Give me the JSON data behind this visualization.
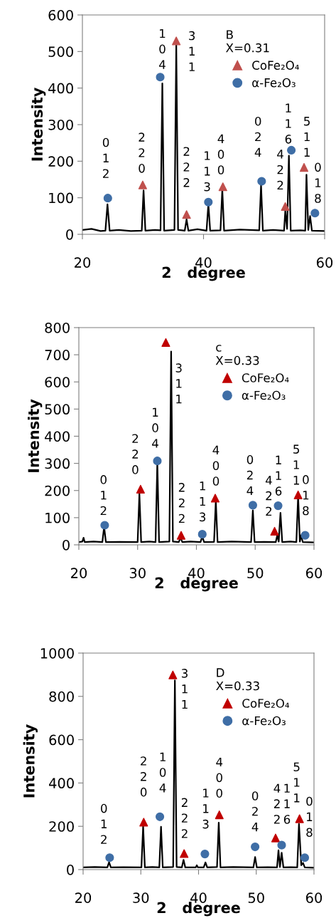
{
  "chart_data": [
    {
      "type": "line",
      "xlabel": "2   degree",
      "ylabel": "Intensity",
      "legend_title": "B\nX=0.31",
      "legend": "top right",
      "grid": false,
      "xlim": [
        20,
        60
      ],
      "xticks": [
        20,
        40,
        60
      ],
      "ylim": [
        0,
        600
      ],
      "yticks": [
        0,
        100,
        200,
        300,
        400,
        500,
        600
      ],
      "series": [
        {
          "color": "#000000",
          "x": [
            20,
            21.5,
            23,
            23.8,
            24.14,
            24.5,
            26,
            28,
            29.8,
            30.1,
            30.4,
            32,
            32.9,
            33.2,
            33.5,
            35.2,
            35.5,
            35.8,
            36.9,
            37.2,
            37.5,
            39,
            40.5,
            40.8,
            41.1,
            42.8,
            43.1,
            43.4,
            46,
            49.2,
            49.5,
            49.8,
            51.5,
            53.3,
            53.5,
            53.8,
            54.1,
            54.4,
            56,
            56.8,
            57.0,
            57.3,
            57.6,
            57.9,
            60
          ],
          "values": [
            12,
            15,
            9,
            10,
            82,
            10,
            12,
            9,
            10,
            120,
            10,
            12,
            11,
            413,
            10,
            12,
            517,
            12,
            10,
            41,
            10,
            14,
            10,
            83,
            10,
            11,
            122,
            10,
            13,
            11,
            135,
            10,
            12,
            10,
            64,
            15,
            215,
            10,
            11,
            10,
            163,
            12,
            50,
            10,
            9
          ]
        },
        {
          "type": "scatter",
          "name": "CoFe₂O₄",
          "color": "#c0504d",
          "marker": "triangle",
          "x": [
            29.96,
            35.5,
            37.2,
            43.2,
            53.5,
            56.6
          ],
          "values": [
            135,
            529,
            54,
            130,
            76,
            183
          ]
        },
        {
          "type": "scatter",
          "name": "α-Fe₂O₃",
          "color": "#3f6ea6",
          "marker": "circle",
          "x": [
            24.2,
            32.85,
            40.8,
            49.6,
            54.5,
            58.4
          ],
          "values": [
            99,
            430,
            88,
            145,
            230,
            58
          ]
        }
      ],
      "annotations": [
        "0\n1\n2",
        "2\n2\n0",
        "1\n0\n4",
        "3\n1\n1",
        "2\n2\n2",
        "1\n1\n3",
        "4\n0\n0",
        "0\n2\n4",
        "4\n2\n2",
        "1\n1\n6",
        "5\n1\n1",
        "0\n1\n8"
      ]
    },
    {
      "type": "line",
      "xlabel": "2   degree",
      "ylabel": "Intensity",
      "legend_title": "c\nX=0.33",
      "legend": "top right",
      "grid": false,
      "xlim": [
        20,
        60
      ],
      "xticks": [
        20,
        30,
        40,
        50,
        60
      ],
      "ylim": [
        0,
        800
      ],
      "yticks": [
        0,
        100,
        200,
        300,
        400,
        500,
        600,
        700,
        800
      ],
      "series": [
        {
          "color": "#000000",
          "x": [
            20,
            20.6,
            20.8,
            21.0,
            22.5,
            24.0,
            24.3,
            24.6,
            27,
            30.0,
            30.3,
            30.6,
            32,
            33.05,
            33.35,
            33.65,
            35.4,
            35.7,
            36.0,
            37.0,
            37.3,
            37.6,
            39,
            40.7,
            41.0,
            41.3,
            43.0,
            43.3,
            43.6,
            46,
            49.3,
            49.6,
            49.9,
            51.5,
            53.5,
            53.75,
            54.0,
            54.3,
            54.6,
            56,
            57.0,
            57.3,
            57.6,
            57.8,
            58.1,
            60
          ],
          "values": [
            10,
            12,
            26,
            10,
            12,
            10,
            66,
            10,
            11,
            10,
            188,
            10,
            12,
            10,
            306,
            10,
            12,
            712,
            12,
            10,
            26,
            10,
            12,
            10,
            31,
            10,
            11,
            162,
            10,
            12,
            10,
            127,
            10,
            11,
            10,
            35,
            12,
            118,
            10,
            12,
            10,
            179,
            12,
            35,
            10,
            9
          ]
        },
        {
          "type": "scatter",
          "name": "CoFe₂O₄",
          "color": "#c00000",
          "marker": "triangle",
          "x": [
            30.5,
            34.8,
            37.4,
            43.2,
            53.3,
            57.3
          ],
          "values": [
            205,
            745,
            35,
            172,
            50,
            184
          ]
        },
        {
          "type": "scatter",
          "name": "α-Fe₂O₃",
          "color": "#3f6ea6",
          "marker": "circle",
          "x": [
            24.4,
            33.35,
            41.0,
            49.6,
            53.9,
            58.5
          ],
          "values": [
            72,
            309,
            39,
            146,
            144,
            35
          ]
        }
      ],
      "annotations": [
        "0\n1\n2",
        "2\n2\n0",
        "1\n0\n4",
        "3\n1\n1",
        "2\n2\n2",
        "1\n1\n3",
        "4\n0\n0",
        "0\n2\n4",
        "4\n2\n2",
        "1\n1\n6",
        "5\n1\n1",
        "0\n1\n8"
      ]
    },
    {
      "type": "line",
      "xlabel": "2   degree",
      "ylabel": "Intensity",
      "legend_title": "D\nX=0.33",
      "legend": "top right",
      "grid": false,
      "xlim": [
        20,
        60
      ],
      "xticks": [
        20,
        30,
        40,
        50,
        60
      ],
      "ylim": [
        0,
        1000
      ],
      "yticks": [
        0,
        200,
        400,
        600,
        800,
        1000
      ],
      "series": [
        {
          "color": "#000000",
          "x": [
            20,
            22,
            24.2,
            24.5,
            24.8,
            27,
            30.1,
            30.4,
            30.7,
            32,
            33.2,
            33.5,
            33.8,
            35.6,
            35.9,
            36.2,
            37.1,
            37.4,
            37.7,
            39.5,
            39.7,
            39.9,
            40.9,
            41.2,
            41.5,
            43.2,
            43.5,
            43.8,
            46,
            49.5,
            49.8,
            50.1,
            52,
            53.6,
            53.85,
            54.1,
            54.4,
            54.7,
            56,
            57.1,
            57.4,
            57.8,
            58.1,
            58.4,
            60
          ],
          "values": [
            10,
            12,
            10,
            34,
            10,
            11,
            10,
            200,
            10,
            12,
            10,
            198,
            10,
            12,
            874,
            12,
            10,
            45,
            10,
            10,
            20,
            10,
            10,
            33,
            10,
            12,
            217,
            10,
            12,
            10,
            58,
            10,
            11,
            10,
            89,
            12,
            78,
            10,
            11,
            10,
            211,
            20,
            31,
            10,
            9
          ]
        },
        {
          "type": "scatter",
          "name": "CoFe₂O₄",
          "color": "#c00000",
          "marker": "triangle",
          "x": [
            30.5,
            35.55,
            37.5,
            43.6,
            53.35,
            57.5
          ],
          "values": [
            219,
            899,
            74,
            253,
            146,
            235
          ]
        },
        {
          "type": "scatter",
          "name": "α-Fe₂O₃",
          "color": "#3f6ea6",
          "marker": "circle",
          "x": [
            24.6,
            33.3,
            41.1,
            49.8,
            54.4,
            58.4
          ],
          "values": [
            55,
            244,
            72,
            105,
            113,
            55
          ]
        }
      ],
      "annotations": [
        "0\n1\n2",
        "2\n2\n0",
        "1\n0\n4",
        "3\n1\n1",
        "2\n2\n2",
        "1\n1\n3",
        "4\n0\n0",
        "0\n2\n4",
        "4\n2\n2",
        "1\n1\n6",
        "5\n1\n1",
        "0\n1\n8"
      ]
    }
  ]
}
